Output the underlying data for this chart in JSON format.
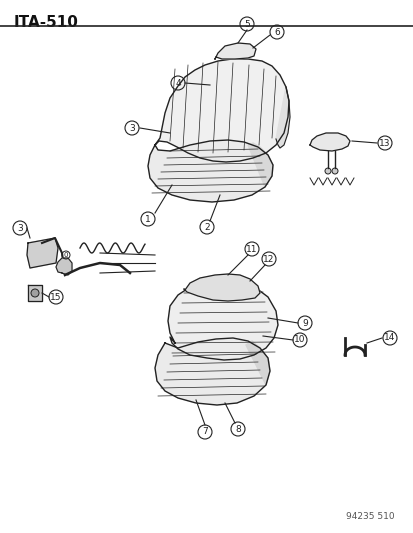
{
  "title": "ITA-510",
  "watermark": "94235 510",
  "bg_color": "#ffffff",
  "line_color": "#222222",
  "text_color": "#111111",
  "title_fontsize": 11,
  "figsize": [
    4.14,
    5.33
  ],
  "dpi": 100
}
